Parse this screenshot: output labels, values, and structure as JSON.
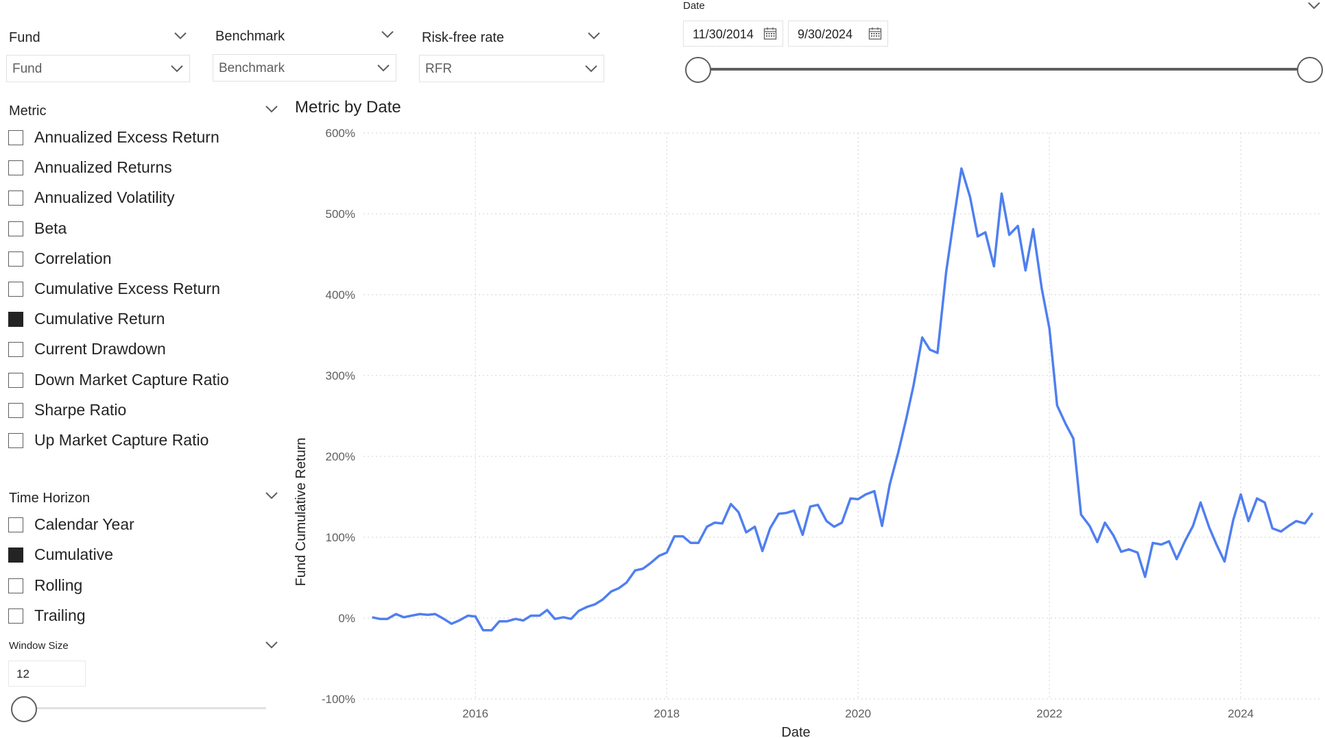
{
  "filters": {
    "fund": {
      "title": "Fund",
      "value": "Fund"
    },
    "benchmark": {
      "title": "Benchmark",
      "value": "Benchmark"
    },
    "rfr": {
      "title": "Risk-free rate",
      "value": "RFR"
    }
  },
  "date_filter": {
    "title": "Date",
    "start": "11/30/2014",
    "end": "9/30/2024",
    "range_fraction": [
      0,
      1
    ]
  },
  "metric_slicer": {
    "title": "Metric",
    "items": [
      {
        "label": "Annualized Excess Return",
        "checked": false
      },
      {
        "label": "Annualized Returns",
        "checked": false
      },
      {
        "label": "Annualized Volatility",
        "checked": false
      },
      {
        "label": "Beta",
        "checked": false
      },
      {
        "label": "Correlation",
        "checked": false
      },
      {
        "label": "Cumulative Excess Return",
        "checked": false
      },
      {
        "label": "Cumulative Return",
        "checked": true
      },
      {
        "label": "Current Drawdown",
        "checked": false
      },
      {
        "label": "Down Market Capture Ratio",
        "checked": false
      },
      {
        "label": "Sharpe Ratio",
        "checked": false
      },
      {
        "label": "Up Market Capture Ratio",
        "checked": false
      }
    ]
  },
  "time_horizon_slicer": {
    "title": "Time Horizon",
    "items": [
      {
        "label": "Calendar Year",
        "checked": false
      },
      {
        "label": "Cumulative",
        "checked": true
      },
      {
        "label": "Rolling",
        "checked": false
      },
      {
        "label": "Trailing",
        "checked": false
      }
    ]
  },
  "window_size": {
    "title": "Window Size",
    "value": "12",
    "slider_fraction": 0
  },
  "chart_data": {
    "type": "line",
    "title": "Metric by Date",
    "xlabel": "Date",
    "ylabel": "Fund Cumulative Return",
    "xlim": [
      2014.83,
      2024.83
    ],
    "ylim": [
      -100,
      600
    ],
    "y_ticks": [
      "-100%",
      "0%",
      "100%",
      "200%",
      "300%",
      "400%",
      "500%",
      "600%"
    ],
    "x_ticks": [
      "2016",
      "2018",
      "2020",
      "2022",
      "2024"
    ],
    "grid": true,
    "color": "#4f7ff0",
    "series": [
      {
        "x": [
          2014.92,
          2015.0,
          2015.08,
          2015.17,
          2015.25,
          2015.33,
          2015.42,
          2015.5,
          2015.58,
          2015.67,
          2015.75,
          2015.83,
          2015.92,
          2016.0,
          2016.08,
          2016.17,
          2016.25,
          2016.33,
          2016.42,
          2016.5,
          2016.58,
          2016.67,
          2016.75,
          2016.83,
          2016.92,
          2017.0,
          2017.08,
          2017.17,
          2017.25,
          2017.33,
          2017.42,
          2017.5,
          2017.58,
          2017.67,
          2017.75,
          2017.83,
          2017.92,
          2018.0,
          2018.08,
          2018.17,
          2018.25,
          2018.33,
          2018.42,
          2018.5,
          2018.58,
          2018.67,
          2018.75,
          2018.83,
          2018.92,
          2019.0,
          2019.08,
          2019.17,
          2019.25,
          2019.33,
          2019.42,
          2019.5,
          2019.58,
          2019.67,
          2019.75,
          2019.83,
          2019.92,
          2020.0,
          2020.08,
          2020.17,
          2020.25,
          2020.33,
          2020.42,
          2020.5,
          2020.58,
          2020.67,
          2020.75,
          2020.83,
          2020.92,
          2021.0,
          2021.08,
          2021.17,
          2021.25,
          2021.33,
          2021.42,
          2021.5,
          2021.58,
          2021.67,
          2021.75,
          2021.83,
          2021.92,
          2022.0,
          2022.08,
          2022.17,
          2022.25,
          2022.33,
          2022.42,
          2022.5,
          2022.58,
          2022.67,
          2022.75,
          2022.83,
          2022.92,
          2023.0,
          2023.08,
          2023.17,
          2023.25,
          2023.33,
          2023.42,
          2023.5,
          2023.58,
          2023.67,
          2023.75,
          2023.83,
          2023.92,
          2024.0,
          2024.08,
          2024.17,
          2024.25,
          2024.33,
          2024.42,
          2024.5,
          2024.58,
          2024.67,
          2024.75
        ],
        "y": [
          1,
          -1,
          -1,
          5,
          1,
          3,
          5,
          4,
          5,
          -1,
          -7,
          -3,
          3,
          2,
          -15,
          -15,
          -4,
          -4,
          -1,
          -3,
          3,
          3,
          10,
          -1,
          1,
          -1,
          9,
          14,
          17,
          23,
          33,
          37,
          44,
          59,
          61,
          68,
          77,
          81,
          101,
          101,
          93,
          93,
          113,
          118,
          117,
          141,
          131,
          106,
          113,
          83,
          111,
          129,
          130,
          133,
          103,
          138,
          140,
          120,
          113,
          118,
          148,
          147,
          153,
          157,
          114,
          165,
          205,
          245,
          288,
          347,
          332,
          328,
          428,
          493,
          556,
          521,
          472,
          477,
          435,
          525,
          474,
          485,
          430,
          481,
          407,
          358,
          263,
          240,
          222,
          128,
          114,
          94,
          118,
          102,
          82,
          85,
          81,
          51,
          93,
          91,
          95,
          73,
          96,
          114,
          143,
          112,
          90,
          70,
          121,
          153,
          120,
          148,
          143,
          111,
          107,
          114,
          120,
          117,
          130
        ]
      }
    ]
  }
}
